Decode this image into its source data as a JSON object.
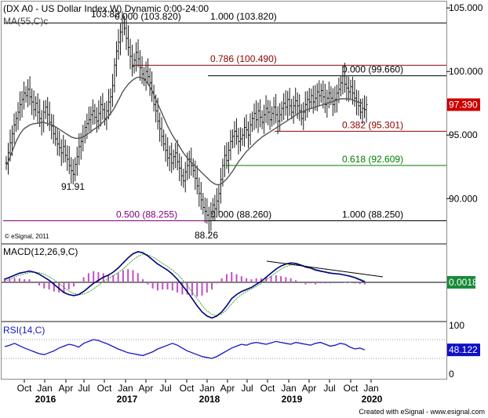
{
  "chart_data": {
    "type": "candlestick",
    "title": "(DX A0 - US Dollar Index,W) Dynamic 0:00-24:00",
    "overlay_label": "MA(55,C)c",
    "copyright": "© eSignal, 2011",
    "footer": "Created with eSignal - www.esignal.com",
    "colors": {
      "price": "#1a1a1a",
      "ma": "#555555",
      "fib_red": "#8b0000",
      "fib_green": "#007a00",
      "fib_purple": "#800080",
      "macd": "#00007a",
      "signal": "#3aa03a",
      "hist": "#c050c0",
      "rsi": "#1515c8",
      "rsi_tag": "#1010c8",
      "macd_tag": "#1a8a3a",
      "price_tag": "#cc0000"
    },
    "x_axis": {
      "months": [
        "Oct",
        "Jan",
        "Apr",
        "Jul",
        "Oct",
        "Jan",
        "Apr",
        "Jul",
        "Oct",
        "Jan",
        "Apr",
        "Jul",
        "Oct",
        "Jan",
        "Apr",
        "Jul",
        "Oct",
        "Jan"
      ],
      "years": [
        "2016",
        "2017",
        "2018",
        "2019",
        "2020"
      ]
    },
    "price_panel": {
      "y_ticks": [
        "105.000",
        "100.000",
        "95.000",
        "90.000"
      ],
      "ylim": [
        86.5,
        105.5
      ],
      "last_value": "97.390",
      "series": [
        {
          "name": "Price",
          "values": [
            92.8,
            93.6,
            94.4,
            95.1,
            95.8,
            96.3,
            96.8,
            97.4,
            97.8,
            98.3,
            98.1,
            98.6,
            98.0,
            97.6,
            97.0,
            97.5,
            96.8,
            96.3,
            96.0,
            96.8,
            97.2,
            96.6,
            96.0,
            95.7,
            95.1,
            94.7,
            94.3,
            94.0,
            93.6,
            94.1,
            93.4,
            93.1,
            92.6,
            92.2,
            91.91,
            92.7,
            93.3,
            94.1,
            94.5,
            94.9,
            95.6,
            95.9,
            96.2,
            96.6,
            96.9,
            96.4,
            96.1,
            96.7,
            97.4,
            97.0,
            96.3,
            96.9,
            97.6,
            98.0,
            98.9,
            100.5,
            101.6,
            102.3,
            103.1,
            103.82,
            103.4,
            102.6,
            101.9,
            101.2,
            100.4,
            100.9,
            101.5,
            101.0,
            100.3,
            99.8,
            99.4,
            100.0,
            99.6,
            99.1,
            98.4,
            97.4,
            96.9,
            96.1,
            95.5,
            94.9,
            94.3,
            93.8,
            93.2,
            93.5,
            92.8,
            93.3,
            93.6,
            92.9,
            92.4,
            91.8,
            91.4,
            92.1,
            92.6,
            93.1,
            92.6,
            92.2,
            91.6,
            91.0,
            90.4,
            89.9,
            89.3,
            89.0,
            88.7,
            88.26,
            88.8,
            89.5,
            89.2,
            89.8,
            90.4,
            91.5,
            92.6,
            93.4,
            93.0,
            93.8,
            94.5,
            94.9,
            95.3,
            94.9,
            94.5,
            94.7,
            95.0,
            95.6,
            95.4,
            95.0,
            95.8,
            96.3,
            96.7,
            96.2,
            96.9,
            96.4,
            96.0,
            96.6,
            97.1,
            96.8,
            96.2,
            96.7,
            97.2,
            96.6,
            96.1,
            96.6,
            97.1,
            97.5,
            97.2,
            97.8,
            97.3,
            96.8,
            97.3,
            97.7,
            97.3,
            96.9,
            96.3,
            96.8,
            97.4,
            97.8,
            97.6,
            98.1,
            97.6,
            97.9,
            98.4,
            98.1,
            98.5,
            98.0,
            97.4,
            97.9,
            98.3,
            97.9,
            97.4,
            97.8,
            98.3,
            98.6,
            99.1,
            99.66,
            99.0,
            98.7,
            98.4,
            98.8,
            98.3,
            97.9,
            97.6,
            97.3,
            96.8,
            97.1,
            97.0,
            97.39
          ]
        },
        {
          "name": "MA(55)",
          "values": [
            92.6,
            92.9,
            93.3,
            93.7,
            94.1,
            94.5,
            94.8,
            95.1,
            95.3,
            95.5,
            95.6,
            95.7,
            95.8,
            95.85,
            95.9,
            95.9,
            95.95,
            95.95,
            96.0,
            96.0,
            95.95,
            95.9,
            95.85,
            95.8,
            95.75,
            95.65,
            95.55,
            95.45,
            95.35,
            95.25,
            95.15,
            95.05,
            94.95,
            94.85,
            94.8,
            94.75,
            94.75,
            94.75,
            94.8,
            94.85,
            94.95,
            95.05,
            95.15,
            95.25,
            95.4,
            95.5,
            95.6,
            95.7,
            95.85,
            96.0,
            96.15,
            96.3,
            96.5,
            96.7,
            96.9,
            97.15,
            97.45,
            97.75,
            98.05,
            98.35,
            98.6,
            98.8,
            99.0,
            99.15,
            99.3,
            99.4,
            99.5,
            99.55,
            99.55,
            99.5,
            99.4,
            99.25,
            99.05,
            98.8,
            98.5,
            98.15,
            97.8,
            97.45,
            97.1,
            96.75,
            96.4,
            96.05,
            95.7,
            95.4,
            95.1,
            94.85,
            94.6,
            94.35,
            94.1,
            93.85,
            93.6,
            93.4,
            93.2,
            93.0,
            92.85,
            92.7,
            92.55,
            92.4,
            92.25,
            92.1,
            91.95,
            91.8,
            91.65,
            91.5,
            91.35,
            91.25,
            91.15,
            91.1,
            91.1,
            91.15,
            91.25,
            91.4,
            91.55,
            91.75,
            91.95,
            92.15,
            92.4,
            92.65,
            92.9,
            93.1,
            93.3,
            93.5,
            93.7,
            93.85,
            94.0,
            94.15,
            94.3,
            94.45,
            94.6,
            94.7,
            94.85,
            94.95,
            95.05,
            95.15,
            95.25,
            95.35,
            95.45,
            95.55,
            95.65,
            95.75,
            95.85,
            95.95,
            96.05,
            96.15,
            96.25,
            96.35,
            96.45,
            96.55,
            96.65,
            96.75,
            96.8,
            96.85,
            96.95,
            97.0,
            97.05,
            97.1,
            97.15,
            97.2,
            97.25,
            97.3,
            97.35,
            97.4,
            97.45,
            97.5,
            97.55,
            97.6,
            97.65,
            97.7,
            97.75,
            97.8,
            97.85,
            97.85,
            97.85,
            97.85,
            97.85,
            97.8,
            97.75,
            97.7,
            97.65,
            97.6,
            97.55,
            97.5
          ]
        }
      ],
      "fib_levels": [
        {
          "value": 103.82,
          "label": "0.000 (103.820)",
          "label2": "1.000 (103.820)",
          "color": "#000000"
        },
        {
          "value": 100.49,
          "label": "0.786 (100.490)",
          "color": "#8b0000"
        },
        {
          "value": 99.66,
          "label": "0.000 (99.660)",
          "color": "#000000"
        },
        {
          "value": 95.301,
          "label": "0.382 (95.301)",
          "color": "#8b0000"
        },
        {
          "value": 92.609,
          "label": "0.618 (92.609)",
          "color": "#007a00"
        },
        {
          "value": 88.255,
          "label": "0.500 (88.255)",
          "color": "#800080"
        },
        {
          "value": 88.26,
          "label": "0.000 (88.260)",
          "label2": "1.000 (88.250)",
          "color": "#000000"
        }
      ],
      "annotations": [
        "103.82",
        "91.91",
        "88.26"
      ]
    },
    "macd_panel": {
      "label": "MACD(12,26,9,C)",
      "last_value": "0.0018",
      "macd_values": [
        0.3,
        0.5,
        0.7,
        0.9,
        1.0,
        1.1,
        1.0,
        0.8,
        0.5,
        0.2,
        -0.2,
        -0.6,
        -1.0,
        -1.2,
        -1.3,
        -1.2,
        -0.9,
        -0.5,
        -0.1,
        0.2,
        0.5,
        0.7,
        1.0,
        1.4,
        1.9,
        2.4,
        2.8,
        3.0,
        2.9,
        2.6,
        2.2,
        1.8,
        1.5,
        1.2,
        0.8,
        0.3,
        -0.3,
        -0.9,
        -1.6,
        -2.3,
        -2.9,
        -3.3,
        -3.5,
        -3.3,
        -2.9,
        -2.3,
        -1.6,
        -1.2,
        -0.9,
        -0.7,
        -0.5,
        -0.2,
        0.1,
        0.5,
        0.9,
        1.3,
        1.6,
        1.8,
        1.9,
        1.85,
        1.7,
        1.5,
        1.4,
        1.2,
        1.1,
        1.0,
        0.9,
        0.85,
        0.8,
        0.7,
        0.6,
        0.45,
        0.25,
        0.05
      ],
      "signal_values": [
        0.1,
        0.3,
        0.5,
        0.7,
        0.85,
        0.95,
        1.0,
        0.95,
        0.8,
        0.55,
        0.25,
        -0.1,
        -0.5,
        -0.85,
        -1.1,
        -1.2,
        -1.15,
        -0.95,
        -0.65,
        -0.3,
        0.05,
        0.35,
        0.65,
        0.95,
        1.3,
        1.75,
        2.2,
        2.55,
        2.75,
        2.7,
        2.5,
        2.2,
        1.85,
        1.55,
        1.2,
        0.8,
        0.3,
        -0.3,
        -0.95,
        -1.6,
        -2.25,
        -2.8,
        -3.15,
        -3.25,
        -3.1,
        -2.7,
        -2.1,
        -1.6,
        -1.2,
        -0.9,
        -0.65,
        -0.4,
        -0.1,
        0.25,
        0.6,
        0.95,
        1.3,
        1.55,
        1.7,
        1.75,
        1.7,
        1.6,
        1.45,
        1.3,
        1.15,
        1.05,
        0.95,
        0.85,
        0.8,
        0.72,
        0.62,
        0.5,
        0.33,
        0.15
      ]
    },
    "rsi_panel": {
      "label": "RSI(14,C)",
      "y_ticks": [
        "100",
        "0"
      ],
      "last_value": "48.122",
      "values": [
        55,
        58,
        62,
        57,
        52,
        48,
        44,
        40,
        38,
        42,
        46,
        52,
        56,
        60,
        58,
        54,
        62,
        66,
        70,
        68,
        64,
        60,
        55,
        50,
        46,
        42,
        40,
        38,
        36,
        40,
        44,
        50,
        54,
        58,
        62,
        58,
        52,
        46,
        42,
        38,
        34,
        32,
        30,
        34,
        40,
        46,
        52,
        56,
        60,
        58,
        62,
        64,
        62,
        60,
        63,
        66,
        64,
        62,
        60,
        64,
        62,
        60,
        58,
        62,
        64,
        60,
        56,
        58,
        62,
        60,
        54,
        50,
        52,
        48
      ]
    }
  }
}
